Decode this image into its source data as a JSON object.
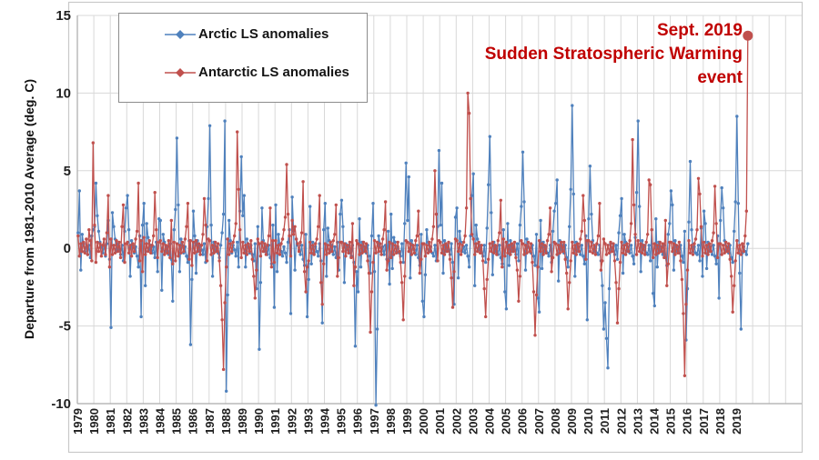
{
  "chart_data": {
    "type": "line",
    "title": "",
    "xlabel": "",
    "ylabel": "Departure from 1981-2010 Average (deg. C)",
    "ylim": [
      -10,
      15
    ],
    "yticks": [
      15,
      10,
      5,
      0,
      -5,
      -10
    ],
    "grid": "both",
    "legend_position": "top-left-inside",
    "x_start_year": 1979,
    "x_year_labels": [
      "1979",
      "1980",
      "1981",
      "1982",
      "1983",
      "1984",
      "1985",
      "1986",
      "1987",
      "1988",
      "1989",
      "1990",
      "1991",
      "1992",
      "1993",
      "1994",
      "1995",
      "1996",
      "1997",
      "1998",
      "1999",
      "2000",
      "2001",
      "2002",
      "2003",
      "2004",
      "2005",
      "2006",
      "2007",
      "2008",
      "2009",
      "2010",
      "2011",
      "2012",
      "2013",
      "2014",
      "2015",
      "2016",
      "2017",
      "2018",
      "2019"
    ],
    "series": [
      {
        "name": "Arctic LS anomalies",
        "color": "#4F81BD",
        "start_year": 1979,
        "start_month": 1,
        "monthly_values": [
          1.0,
          3.7,
          -1.4,
          0.9,
          0.3,
          -0.2,
          0.1,
          -0.4,
          0.2,
          -0.6,
          0.8,
          1.2,
          1.4,
          4.2,
          2.1,
          1.1,
          0.4,
          0.1,
          -0.3,
          0.2,
          -0.5,
          0.3,
          1.8,
          -0.7,
          -5.1,
          2.3,
          1.4,
          0.6,
          -0.2,
          0.3,
          -0.1,
          -0.4,
          0.2,
          -0.8,
          1.1,
          2.6,
          3.4,
          1.2,
          -1.8,
          0.5,
          0.2,
          -0.3,
          0.1,
          -0.5,
          -1.2,
          0.8,
          -4.4,
          1.5,
          2.9,
          -2.4,
          1.6,
          0.7,
          -0.1,
          0.2,
          -0.3,
          0.1,
          -0.6,
          0.4,
          -1.5,
          1.9,
          1.8,
          -2.7,
          0.9,
          0.4,
          -0.2,
          0.1,
          -0.4,
          0.3,
          -0.7,
          -3.4,
          1.2,
          2.5,
          7.1,
          2.8,
          -1.5,
          0.6,
          0.2,
          -0.3,
          0.1,
          -0.5,
          -0.9,
          0.5,
          -6.2,
          -2.0,
          2.4,
          0.8,
          -1.6,
          0.5,
          -0.2,
          0.2,
          -0.1,
          -0.4,
          0.3,
          -0.9,
          1.4,
          3.2,
          7.9,
          1.5,
          -1.8,
          0.4,
          -0.2,
          0.1,
          -0.3,
          -0.6,
          0.2,
          1.0,
          2.2,
          8.2,
          -9.2,
          -3.0,
          1.8,
          0.5,
          -0.3,
          0.2,
          -0.1,
          -0.5,
          0.4,
          -1.2,
          2.4,
          5.9,
          2.1,
          3.4,
          -1.2,
          0.6,
          0.1,
          -0.3,
          0.2,
          -0.4,
          -0.8,
          0.3,
          -2.6,
          1.4,
          -6.5,
          -2.2,
          2.6,
          0.5,
          -0.2,
          0.1,
          -0.4,
          0.2,
          -0.6,
          -1.0,
          1.5,
          -3.8,
          2.8,
          -1.5,
          0.9,
          0.3,
          -0.2,
          -0.5,
          0.1,
          -0.3,
          -0.9,
          0.4,
          1.2,
          -4.2,
          3.3,
          1.1,
          -1.4,
          0.6,
          0.2,
          -0.1,
          -0.4,
          0.2,
          -0.7,
          -1.1,
          0.9,
          -4.4,
          -2.0,
          2.7,
          -1.0,
          0.4,
          -0.3,
          0.1,
          -0.2,
          -0.5,
          0.3,
          -0.8,
          -4.8,
          1.2,
          2.9,
          -1.8,
          1.3,
          0.5,
          -0.2,
          0.2,
          -0.4,
          0.1,
          -0.6,
          0.4,
          -1.4,
          2.2,
          3.1,
          1.4,
          -2.2,
          0.3,
          -0.1,
          0.2,
          -0.3,
          -0.5,
          0.2,
          -0.9,
          -6.3,
          -1.5,
          -2.8,
          1.9,
          -1.2,
          0.4,
          -0.2,
          0.1,
          -0.3,
          0.2,
          -0.5,
          -1.6,
          0.8,
          2.9,
          -1.5,
          -10.1,
          -5.2,
          0.8,
          0.3,
          -0.2,
          0.1,
          -0.4,
          0.2,
          -0.7,
          1.1,
          -2.3,
          2.2,
          -1.3,
          0.7,
          0.4,
          -0.2,
          0.1,
          -0.3,
          -0.5,
          0.3,
          -0.9,
          1.6,
          5.5,
          1.8,
          4.6,
          -1.9,
          0.5,
          0.2,
          -0.1,
          -0.4,
          0.2,
          -0.6,
          -1.1,
          0.9,
          -3.4,
          -4.4,
          -1.7,
          1.2,
          0.4,
          -0.2,
          0.1,
          -0.3,
          -0.5,
          0.2,
          -0.8,
          1.4,
          6.3,
          1.5,
          4.2,
          -1.6,
          0.5,
          -0.2,
          0.2,
          -0.1,
          -0.4,
          0.3,
          -0.9,
          -3.6,
          2.0,
          2.6,
          -1.9,
          1.1,
          0.4,
          -0.2,
          0.1,
          -0.3,
          0.2,
          -0.5,
          -1.2,
          0.8,
          3.4,
          4.8,
          -2.4,
          1.5,
          0.6,
          -0.1,
          0.2,
          -0.3,
          -0.5,
          0.2,
          -0.9,
          1.3,
          4.1,
          7.2,
          2.3,
          -1.7,
          0.4,
          -0.2,
          0.1,
          -0.4,
          0.2,
          -0.6,
          -1.0,
          1.2,
          -2.8,
          -3.9,
          1.6,
          -1.1,
          0.5,
          -0.2,
          0.2,
          -0.1,
          -0.4,
          0.3,
          -0.8,
          1.5,
          2.7,
          6.2,
          3.0,
          -1.4,
          0.6,
          0.1,
          -0.2,
          -0.3,
          0.2,
          -0.5,
          -1.1,
          0.9,
          -3.2,
          -4.1,
          1.8,
          -1.3,
          0.4,
          -0.2,
          0.1,
          -0.3,
          -0.5,
          0.2,
          -0.9,
          1.1,
          2.4,
          2.9,
          4.4,
          -2.1,
          0.5,
          -0.1,
          0.2,
          -0.3,
          0.2,
          -0.6,
          -1.2,
          1.4,
          3.8,
          9.2,
          3.5,
          -1.8,
          0.4,
          -0.2,
          0.1,
          -0.4,
          0.2,
          -0.5,
          -1.0,
          0.8,
          -4.6,
          1.9,
          5.3,
          2.2,
          0.5,
          -0.2,
          0.1,
          -0.3,
          -0.4,
          0.2,
          -0.8,
          -2.4,
          -5.2,
          -3.5,
          -5.8,
          -7.7,
          -2.6,
          0.3,
          -0.2,
          0.1,
          -0.4,
          0.2,
          -0.7,
          1.0,
          2.1,
          3.2,
          -1.6,
          0.9,
          0.4,
          -0.2,
          0.1,
          -0.3,
          0.2,
          -0.5,
          -1.0,
          0.7,
          3.6,
          8.2,
          2.7,
          -1.5,
          0.5,
          -0.1,
          0.2,
          -0.3,
          -0.4,
          0.2,
          -0.8,
          1.2,
          -2.9,
          -3.7,
          1.9,
          -1.2,
          0.4,
          -0.2,
          0.1,
          -0.4,
          0.2,
          -0.6,
          -1.1,
          0.9,
          1.6,
          3.7,
          2.8,
          -1.4,
          0.5,
          -0.2,
          0.1,
          -0.3,
          0.2,
          -0.5,
          -0.9,
          1.1,
          -5.9,
          -2.6,
          1.7,
          5.6,
          1.2,
          -0.2,
          0.1,
          -0.3,
          -0.4,
          0.2,
          -0.8,
          1.3,
          -1.8,
          2.4,
          1.6,
          -1.3,
          0.4,
          -0.2,
          0.1,
          -0.4,
          0.2,
          -0.5,
          -1.0,
          0.8,
          -3.2,
          1.8,
          3.9,
          2.6,
          0.5,
          -0.2,
          0.1,
          -0.3,
          0.2,
          -0.6,
          -0.9,
          1.1,
          3.0,
          8.5,
          2.9,
          -1.6,
          -5.2,
          -0.3,
          0.1,
          -0.2,
          -0.4,
          0.3
        ]
      },
      {
        "name": "Antarctic LS anomalies",
        "color": "#C0504D",
        "start_year": 1979,
        "start_month": 1,
        "highlight_last": true,
        "monthly_values": [
          0.8,
          -0.5,
          0.3,
          -0.2,
          0.4,
          -0.3,
          0.6,
          -0.4,
          1.2,
          0.5,
          -0.8,
          6.8,
          1.5,
          -0.9,
          0.4,
          -0.2,
          0.3,
          -0.5,
          0.2,
          0.6,
          -0.4,
          1.0,
          3.4,
          -1.2,
          0.6,
          -0.4,
          0.2,
          -0.3,
          0.5,
          -0.2,
          0.4,
          -0.6,
          1.4,
          2.8,
          -0.9,
          0.3,
          0.4,
          -0.3,
          0.2,
          -0.5,
          0.3,
          -0.2,
          0.6,
          1.1,
          4.2,
          -0.8,
          0.5,
          -1.5,
          0.7,
          -0.4,
          0.3,
          -0.2,
          0.5,
          -0.3,
          0.2,
          0.8,
          3.6,
          1.2,
          -0.6,
          0.4,
          0.5,
          -0.2,
          0.3,
          -0.4,
          0.2,
          -0.3,
          0.5,
          -0.6,
          1.8,
          -1.0,
          0.4,
          -0.8,
          0.3,
          -0.5,
          0.2,
          -0.3,
          0.4,
          -0.2,
          0.6,
          1.4,
          2.9,
          -0.7,
          0.5,
          -1.1,
          0.4,
          -0.3,
          0.5,
          -0.2,
          0.3,
          -0.4,
          0.2,
          0.9,
          3.2,
          1.5,
          -0.8,
          0.6,
          0.5,
          -0.4,
          0.2,
          -0.3,
          0.4,
          -0.2,
          0.3,
          -0.8,
          -2.4,
          -4.6,
          -7.8,
          -3.5,
          -1.2,
          0.6,
          -0.4,
          0.3,
          -0.2,
          0.4,
          0.8,
          1.6,
          7.5,
          3.8,
          1.2,
          -0.6,
          0.4,
          -0.3,
          0.2,
          -0.4,
          0.3,
          -0.2,
          0.5,
          -0.7,
          -1.8,
          -3.2,
          -1.4,
          0.6,
          0.3,
          -0.5,
          0.4,
          -0.2,
          0.3,
          -0.4,
          0.2,
          0.8,
          2.6,
          -1.2,
          0.5,
          -0.9,
          0.5,
          -0.3,
          0.2,
          -0.4,
          0.3,
          0.6,
          1.2,
          2.0,
          5.4,
          2.2,
          0.8,
          -0.5,
          1.8,
          0.9,
          1.4,
          0.6,
          0.3,
          -0.2,
          0.4,
          1.0,
          4.3,
          -1.5,
          -2.8,
          -1.2,
          -0.8,
          0.4,
          -0.3,
          0.2,
          -0.4,
          0.3,
          0.6,
          1.4,
          3.4,
          -2.2,
          -3.6,
          -1.0,
          0.3,
          -0.4,
          0.2,
          -0.3,
          0.4,
          -0.2,
          0.5,
          0.9,
          2.8,
          -1.8,
          -0.6,
          0.4,
          0.4,
          -0.2,
          0.3,
          -0.5,
          0.2,
          -0.3,
          0.4,
          -0.6,
          1.6,
          -2.4,
          -1.2,
          0.5,
          0.3,
          -0.4,
          0.2,
          -0.3,
          0.4,
          -0.2,
          0.3,
          -0.8,
          -1.6,
          -5.4,
          -2.8,
          -0.9,
          0.5,
          -0.3,
          0.4,
          -0.2,
          0.3,
          -0.4,
          0.6,
          1.2,
          3.0,
          -1.4,
          -0.8,
          0.4,
          -0.6,
          0.3,
          -0.4,
          0.2,
          -0.3,
          0.4,
          -0.2,
          -0.9,
          -2.2,
          -4.6,
          -1.8,
          0.5,
          0.4,
          -0.2,
          0.3,
          -0.4,
          0.2,
          -0.3,
          0.5,
          0.8,
          2.4,
          -1.6,
          -0.7,
          0.3,
          0.3,
          -0.5,
          0.2,
          -0.3,
          0.4,
          -0.2,
          0.6,
          1.4,
          5.0,
          2.2,
          -0.8,
          0.5,
          0.4,
          -0.3,
          0.2,
          -0.4,
          0.3,
          -0.2,
          0.4,
          -0.7,
          -1.9,
          -3.8,
          -1.5,
          0.6,
          0.5,
          -0.2,
          0.3,
          -0.4,
          0.2,
          0.4,
          0.8,
          2.6,
          10.0,
          8.7,
          3.2,
          0.9,
          0.6,
          -0.4,
          0.3,
          -0.2,
          0.4,
          -0.3,
          0.2,
          -0.8,
          -2.6,
          -4.4,
          -2.0,
          -0.7,
          0.3,
          -0.2,
          0.4,
          -0.3,
          0.2,
          -0.4,
          0.5,
          1.0,
          3.1,
          -1.2,
          0.6,
          -0.5,
          0.4,
          -0.3,
          0.2,
          -0.4,
          0.3,
          -0.2,
          0.4,
          -0.6,
          -1.4,
          -3.4,
          -1.8,
          0.5,
          0.3,
          -0.4,
          0.2,
          -0.3,
          0.4,
          -0.2,
          0.3,
          -0.9,
          -2.8,
          -5.6,
          -3.0,
          -1.2,
          0.5,
          -0.2,
          0.3,
          -0.4,
          0.2,
          -0.3,
          0.5,
          0.9,
          2.6,
          -1.5,
          -0.6,
          0.4,
          0.3,
          -0.4,
          0.2,
          -0.3,
          0.4,
          -0.2,
          0.4,
          -0.7,
          -1.6,
          -3.9,
          -2.2,
          -0.8,
          0.4,
          -0.3,
          0.2,
          -0.4,
          0.3,
          -0.2,
          0.6,
          1.1,
          3.4,
          1.8,
          -0.7,
          0.5,
          0.5,
          -0.2,
          0.4,
          -0.3,
          0.2,
          -0.4,
          0.3,
          0.8,
          2.9,
          -1.4,
          -0.8,
          0.6,
          0.3,
          -0.4,
          0.2,
          -0.3,
          0.4,
          -0.2,
          0.3,
          -0.8,
          -2.2,
          -4.8,
          -2.6,
          -0.9,
          0.4,
          -0.3,
          0.2,
          -0.4,
          0.3,
          -0.2,
          0.5,
          1.6,
          7.0,
          2.8,
          0.9,
          -0.4,
          0.5,
          -0.2,
          0.3,
          -0.3,
          0.2,
          -0.4,
          0.4,
          0.9,
          4.4,
          4.1,
          1.2,
          -0.6,
          0.3,
          -0.4,
          0.2,
          -0.3,
          0.4,
          -0.2,
          0.3,
          -0.6,
          1.8,
          -2.4,
          -1.0,
          0.4,
          0.4,
          -0.2,
          0.3,
          -0.4,
          0.2,
          -0.3,
          0.4,
          -0.8,
          -2.0,
          -4.2,
          -8.2,
          -3.6,
          -1.4,
          0.5,
          -0.3,
          0.2,
          -0.4,
          0.3,
          0.6,
          1.2,
          4.5,
          3.5,
          1.4,
          -0.5,
          0.4,
          -0.3,
          0.2,
          -0.4,
          0.3,
          -0.2,
          0.5,
          1.0,
          4.0,
          1.6,
          -0.6,
          0.3,
          0.3,
          -0.4,
          0.2,
          -0.3,
          0.4,
          -0.2,
          0.3,
          -0.7,
          -1.8,
          -4.1,
          -2.4,
          -0.8,
          0.5,
          -0.3,
          0.2,
          -0.4,
          0.3,
          -0.2,
          0.8,
          2.4,
          13.7
        ]
      }
    ],
    "annotation": {
      "lines": [
        "Sept. 2019",
        "Sudden Stratospheric Warming",
        "event"
      ],
      "color": "#C00000",
      "points_to": {
        "series": "Antarctic LS anomalies",
        "month": "Sept 2019",
        "value": 13.7
      }
    }
  }
}
